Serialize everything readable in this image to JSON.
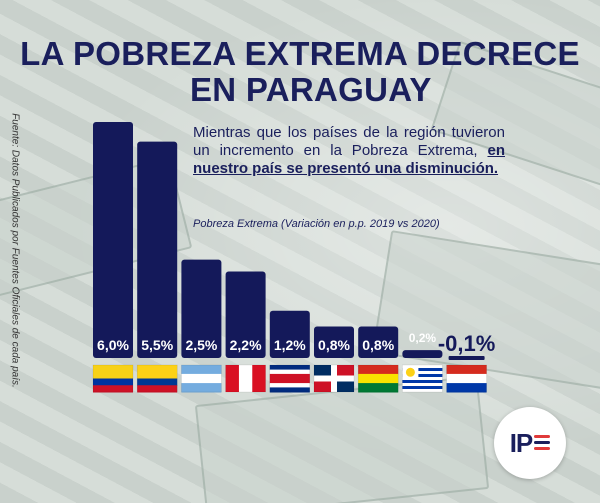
{
  "header": {
    "title_line1": "LA POBREZA EXTREMA DECRECE",
    "title_line2": "EN PARAGUAY"
  },
  "source_note": "Fuente: Datos Publicados por Fuentes Oficiales de cada país.",
  "description": {
    "part1": "Mientras que los países de la región tuvieron un incremento en la Pobreza Extrema, ",
    "part2": "en nuestro país se presentó una disminución."
  },
  "subtitle": "Pobreza Extrema (Variación en p.p. 2019 vs 2020)",
  "logo": {
    "text": "IP"
  },
  "colors": {
    "bar": "#14195a",
    "title": "#1a1f5c",
    "accent_red": "#e03a3a"
  },
  "chart_data": {
    "type": "bar",
    "title": "",
    "xlabel": "",
    "ylabel": "",
    "categories": [
      "Ecuador",
      "Colombia",
      "Argentina",
      "Perú",
      "Costa Rica",
      "República Dominicana",
      "Bolivia",
      "Uruguay",
      "Paraguay"
    ],
    "values": [
      6.0,
      5.5,
      2.5,
      2.2,
      1.2,
      0.8,
      0.8,
      0.2,
      -0.1
    ],
    "data_labels": [
      "6,0%",
      "5,5%",
      "2,5%",
      "2,2%",
      "1,2%",
      "0,8%",
      "0,8%",
      "0,2%",
      "-0,1%"
    ],
    "flags": [
      "ecuador-flag-icon",
      "colombia-flag-icon",
      "argentina-flag-icon",
      "peru-flag-icon",
      "costa-rica-flag-icon",
      "dominican-republic-flag-icon",
      "bolivia-flag-icon",
      "uruguay-flag-icon",
      "paraguay-flag-icon"
    ],
    "ylim": [
      -0.1,
      6.0
    ],
    "grid": false,
    "legend": "none"
  }
}
